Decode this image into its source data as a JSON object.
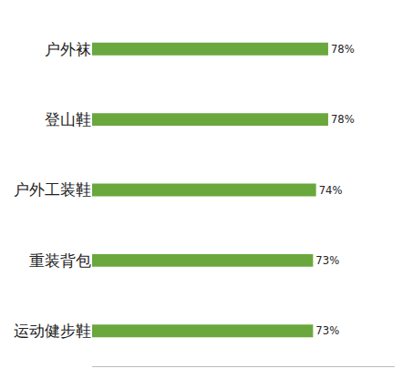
{
  "chart_data": {
    "type": "bar",
    "orientation": "horizontal",
    "categories": [
      "户外袜",
      "登山鞋",
      "户外工装鞋",
      "重装背包",
      "运动健步鞋"
    ],
    "values": [
      78,
      78,
      74,
      73,
      73
    ],
    "value_labels": [
      "78%",
      "78%",
      "74%",
      "73%",
      "73%"
    ],
    "color": "#6aa83e",
    "xlim": [
      0,
      100
    ],
    "xticks": [],
    "data_labels": true,
    "tick_labels": "y",
    "grid": false
  }
}
